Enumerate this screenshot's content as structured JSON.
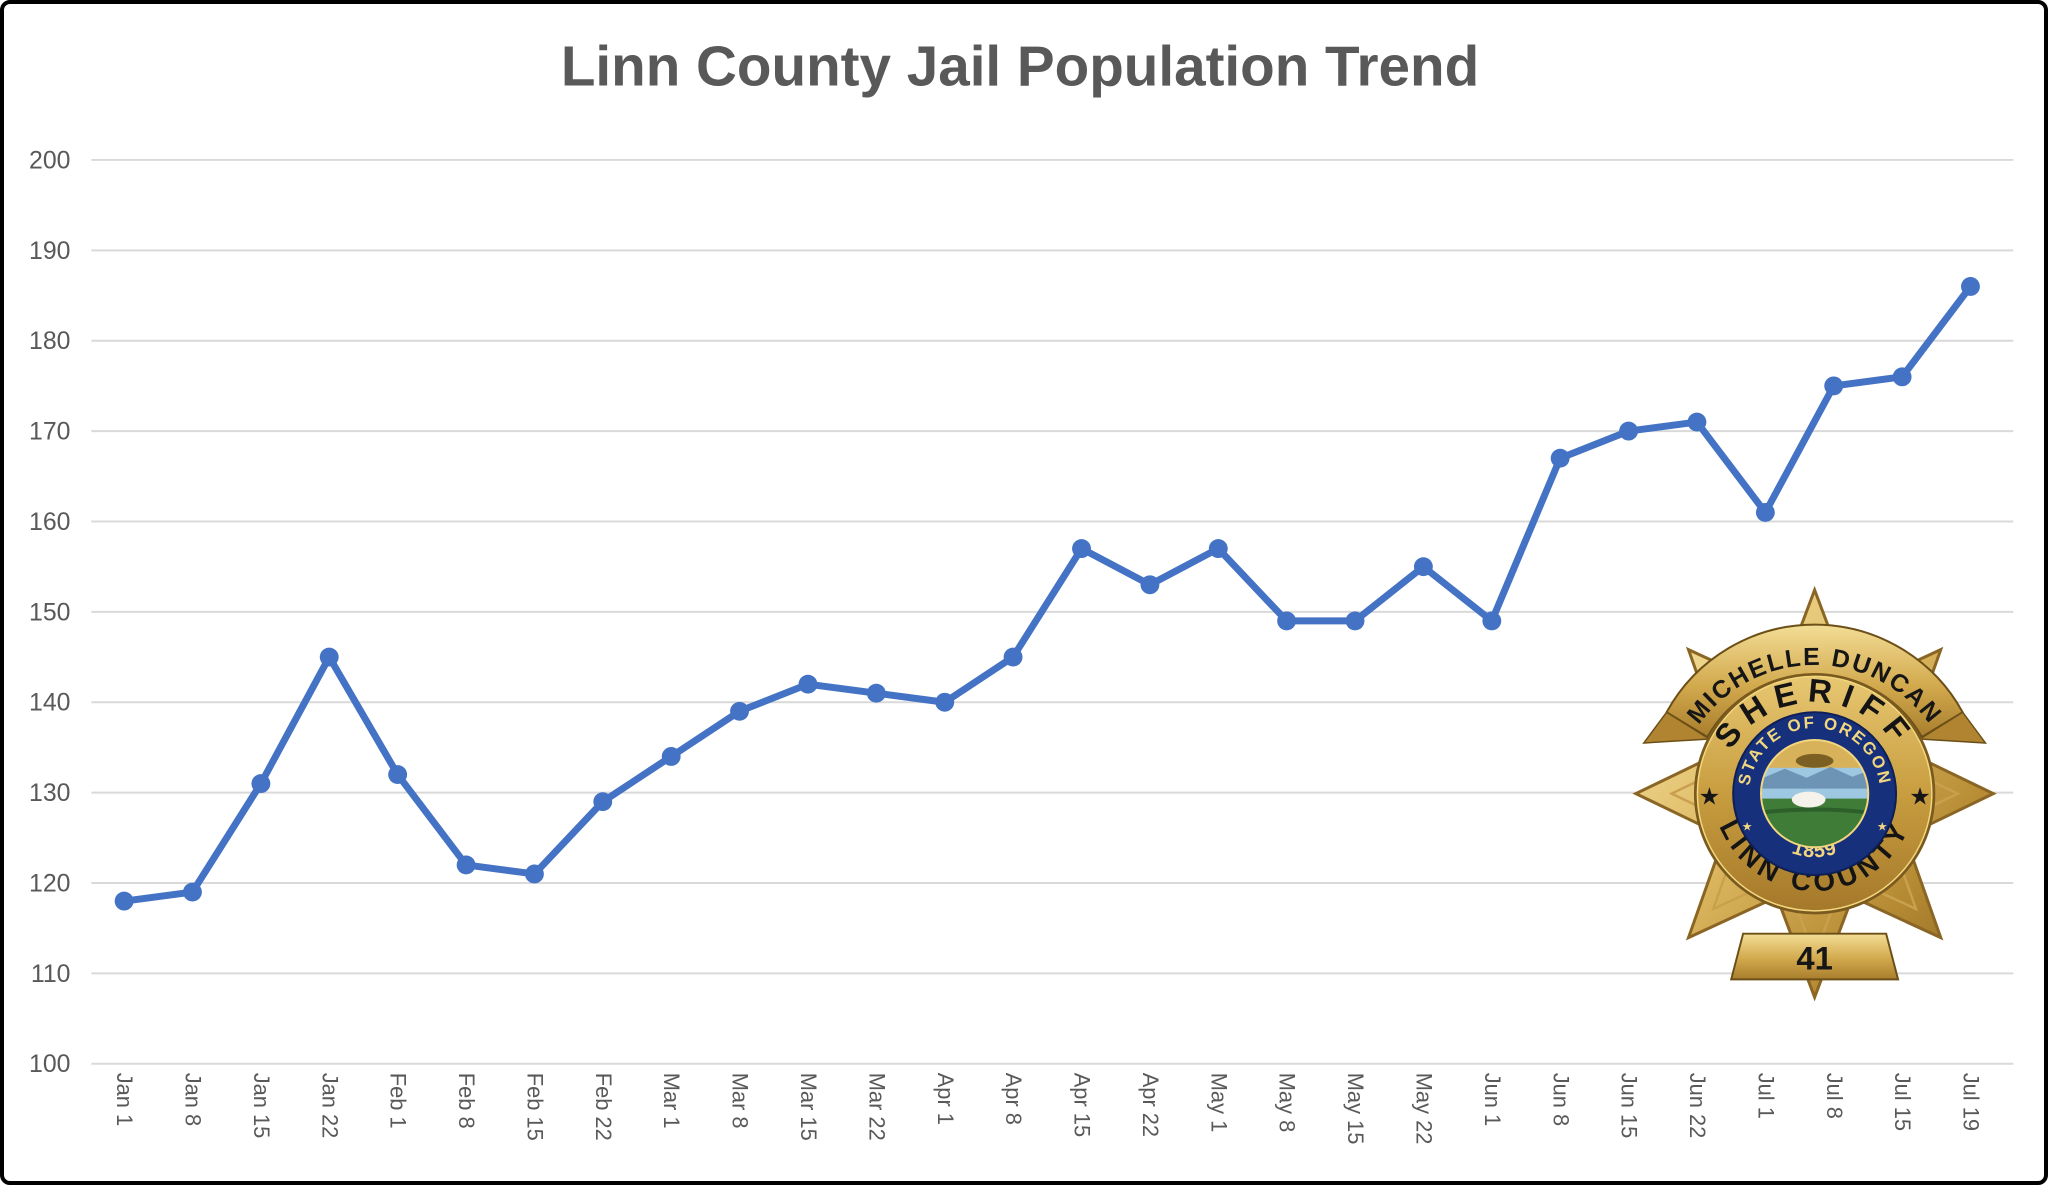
{
  "title": "Linn County Jail Population Trend",
  "chart_data": {
    "type": "line",
    "title": "Linn County Jail Population Trend",
    "categories": [
      "Jan 1",
      "Jan 8",
      "Jan 15",
      "Jan 22",
      "Feb 1",
      "Feb 8",
      "Feb 15",
      "Feb 22",
      "Mar 1",
      "Mar 8",
      "Mar 15",
      "Mar 22",
      "Apr 1",
      "Apr 8",
      "Apr 15",
      "Apr 22",
      "May 1",
      "May 8",
      "May 15",
      "May 22",
      "Jun 1",
      "Jun 8",
      "Jun 15",
      "Jun 22",
      "Jul 1",
      "Jul 8",
      "Jul 15",
      "Jul 19"
    ],
    "values": [
      118,
      119,
      131,
      145,
      132,
      122,
      121,
      129,
      134,
      139,
      142,
      141,
      140,
      145,
      157,
      153,
      157,
      149,
      149,
      155,
      149,
      167,
      170,
      171,
      161,
      175,
      176,
      186
    ],
    "xlabel": "",
    "ylabel": "",
    "ylim": [
      100,
      200
    ],
    "ytick_step": 10,
    "grid": true,
    "legend": false,
    "line_color": "#4472C4",
    "marker": "circle",
    "gridline_color": "#D9D9D9",
    "axis_label_color": "#595959",
    "title_color": "#595959",
    "x_label_rotation_deg": 90
  },
  "badge": {
    "ribbon_top": "MICHELLE DUNCAN",
    "arc_top": "SHERIFF",
    "arc_bottom": "LINN COUNTY",
    "seal_arc_top": "STATE OF OREGON",
    "seal_year": "1859",
    "banner_number": "41",
    "ring_star_left": "★",
    "ring_star_right": "★",
    "seal_star_left": "★",
    "seal_star_right": "★"
  },
  "colors": {
    "line": "#4472C4",
    "gridline": "#D9D9D9",
    "labels": "#595959",
    "badge_gold_light": "#F6E09A",
    "badge_gold_dark": "#9A7122",
    "badge_blue": "#17307B"
  }
}
